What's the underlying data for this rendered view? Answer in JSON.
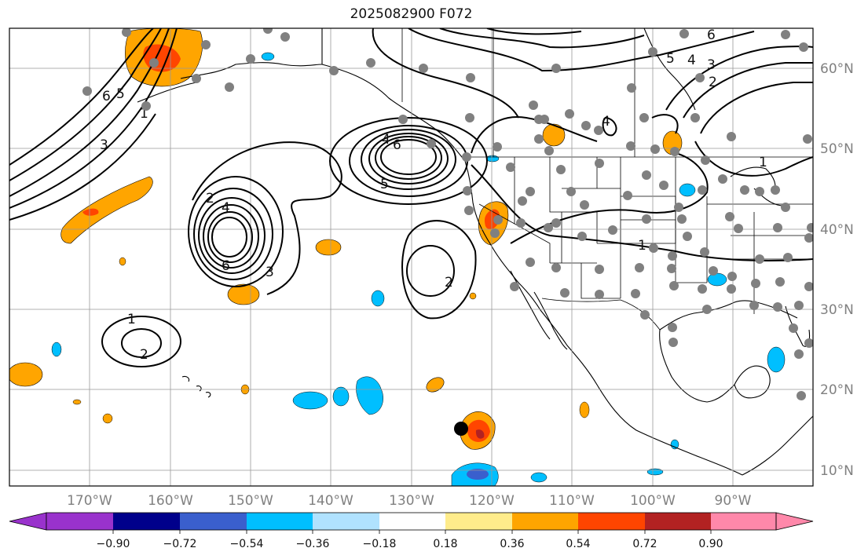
{
  "title": "2025082900 F072",
  "map": {
    "lon_labels": [
      {
        "text": "170°W",
        "lon": -170
      },
      {
        "text": "160°W",
        "lon": -160
      },
      {
        "text": "150°W",
        "lon": -150
      },
      {
        "text": "140°W",
        "lon": -140
      },
      {
        "text": "130°W",
        "lon": -130
      },
      {
        "text": "120°W",
        "lon": -120
      },
      {
        "text": "110°W",
        "lon": -110
      },
      {
        "text": "100°W",
        "lon": -100
      },
      {
        "text": "90°W",
        "lon": -90
      }
    ],
    "lat_labels": [
      {
        "text": "60°N",
        "lat": 60
      },
      {
        "text": "50°N",
        "lat": 50
      },
      {
        "text": "40°N",
        "lat": 40
      },
      {
        "text": "30°N",
        "lat": 30
      },
      {
        "text": "20°N",
        "lat": 20
      },
      {
        "text": "10°N",
        "lat": 10
      }
    ],
    "contour_labels": [
      "1",
      "2",
      "3",
      "4",
      "5",
      "6"
    ],
    "colors": {
      "contour": "#000000",
      "grid": "#999999",
      "coast": "#000000",
      "station": "#808080",
      "marker": "#000000"
    }
  },
  "colorbar": {
    "ticks": [
      "−0.90",
      "−0.72",
      "−0.54",
      "−0.36",
      "−0.18",
      "0.18",
      "0.36",
      "0.54",
      "0.72",
      "0.90"
    ],
    "colors": [
      "#9932cc",
      "#00008b",
      "#3a5fcd",
      "#00bfff",
      "#b0e2ff",
      "#ffffff",
      "#ffec8b",
      "#ffa500",
      "#ff4500",
      "#b22222",
      "#ff88aa"
    ]
  }
}
